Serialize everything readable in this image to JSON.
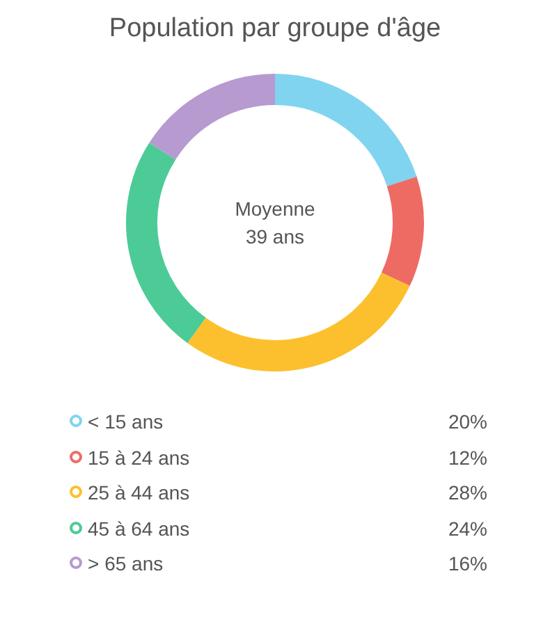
{
  "chart_data": {
    "type": "donut",
    "title": "Population par groupe d'âge",
    "categories": [
      "< 15 ans",
      "15 à 24 ans",
      "25 à 44 ans",
      "45 à 64 ans",
      "> 65 ans"
    ],
    "values": [
      20,
      12,
      28,
      24,
      16
    ],
    "colors": [
      "#80d4f0",
      "#ee6b63",
      "#fcc02e",
      "#4ccb96",
      "#b79ad0"
    ],
    "value_labels": [
      "20%",
      "12%",
      "28%",
      "24%",
      "16%"
    ],
    "annotations": [
      "Moyenne",
      "39 ans"
    ],
    "legend": "bottom"
  }
}
